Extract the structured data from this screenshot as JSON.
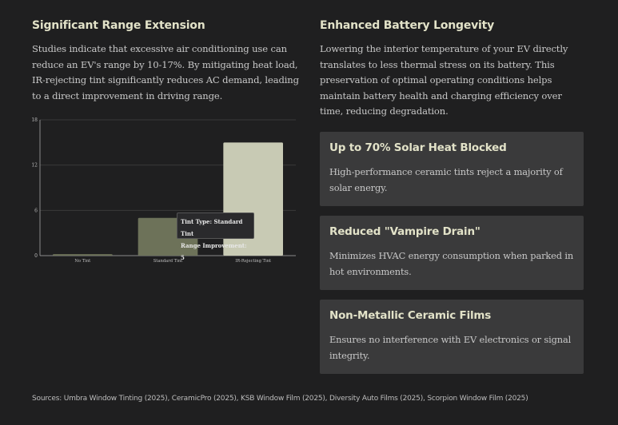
{
  "left": {
    "heading": "Significant Range Extension",
    "body": "Studies indicate that excessive air conditioning use can reduce an EV's range by 10-17%. By mitigating heat load, IR-rejecting tint significantly reduces AC demand, leading to a direct improvement in driving range."
  },
  "right": {
    "heading": "Enhanced Battery Longevity",
    "body": "Lowering the interior temperature of your EV directly translates to less thermal stress on its battery. This preservation of optimal operating conditions helps maintain battery health and charging efficiency over time, reducing degradation."
  },
  "cards": [
    {
      "title": "Up to 70% Solar Heat Blocked",
      "text": "High-performance ceramic tints reject a majority of solar energy."
    },
    {
      "title": "Reduced \"Vampire Drain\"",
      "text": "Minimizes HVAC energy consumption when parked in hot environments."
    },
    {
      "title": "Non-Metallic Ceramic Films",
      "text": "Ensures no interference with EV electronics or signal integrity."
    }
  ],
  "tooltip": {
    "line1": "Tint Type: Standard Tint",
    "line2": "Range Improvement: 5"
  },
  "sources": "Sources: Umbra Window Tinting (2025), CeramicPro (2025), KSB Window Film (2025), Diversity Auto Films (2025), Scorpion Window Film (2025)",
  "chart_data": {
    "type": "bar",
    "categories": [
      "No Tint",
      "Standard Tint",
      "IR-Rejecting Tint"
    ],
    "values": [
      0.2,
      5,
      15
    ],
    "ylim": [
      0,
      18
    ],
    "yticks": [
      0,
      6,
      12,
      18
    ],
    "grid": true,
    "colors": [
      "#6d7259",
      "#6d7259",
      "#c8cab4"
    ],
    "highlighted": "Standard Tint"
  }
}
